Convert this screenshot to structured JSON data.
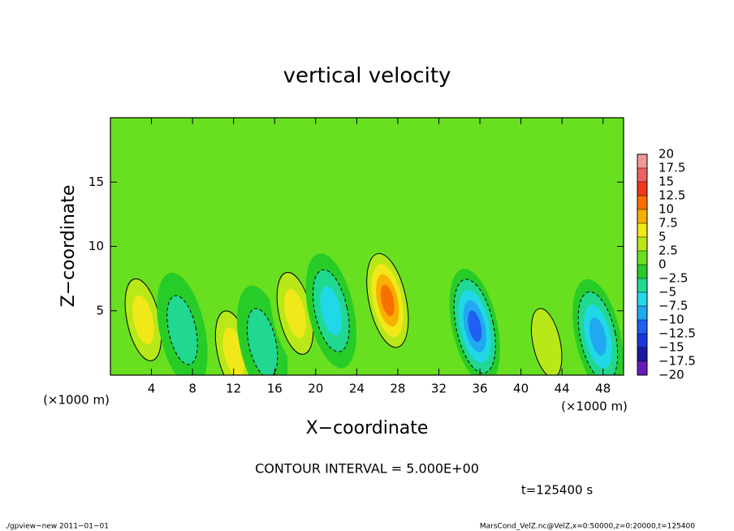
{
  "chart_data": {
    "type": "contour",
    "title": "vertical velocity",
    "xlabel": "X−coordinate",
    "ylabel": "Z−coordinate",
    "x_unit": "(×1000 m)",
    "contour_note": "CONTOUR INTERVAL = 5.000E+00",
    "time_label": "t=125400 s",
    "footer_left": "./gpview−new  2011−01−01",
    "footer_right": "MarsCond_VelZ.nc@VelZ,x=0:50000,z=0:20000,t=125400",
    "xlim": [
      0,
      50
    ],
    "ylim": [
      0,
      20
    ],
    "xticks": [
      4,
      8,
      12,
      16,
      20,
      24,
      28,
      32,
      36,
      40,
      44,
      48
    ],
    "yticks": [
      5,
      10,
      15
    ],
    "levels": [
      {
        "value": -20,
        "label": "−20"
      },
      {
        "value": -17.5,
        "label": "−17.5"
      },
      {
        "value": -15,
        "label": "−15"
      },
      {
        "value": -12.5,
        "label": "−12.5"
      },
      {
        "value": -10,
        "label": "−10"
      },
      {
        "value": -7.5,
        "label": "−7.5"
      },
      {
        "value": -5,
        "label": "−5"
      },
      {
        "value": -2.5,
        "label": "−2.5"
      },
      0,
      2.5,
      5,
      7.5,
      10,
      12.5,
      15,
      17.5,
      20
    ],
    "colors": [
      "#6a1ab8",
      "#1a1aa0",
      "#1a36d8",
      "#2060f0",
      "#20a8f0",
      "#20d8e8",
      "#20d890",
      "#28cc28",
      "#68e020",
      "#b8e818",
      "#f0e818",
      "#f8b000",
      "#f87000",
      "#f03818",
      "#f06060",
      "#f09898"
    ],
    "features": [
      {
        "x": 3.2,
        "z": 4.3,
        "value": 7.5
      },
      {
        "x": 7,
        "z": 3.5,
        "value": -5
      },
      {
        "x": 12,
        "z": 1.8,
        "value": 7
      },
      {
        "x": 14.8,
        "z": 2.5,
        "value": -4
      },
      {
        "x": 18,
        "z": 4.8,
        "value": 7.5
      },
      {
        "x": 21.5,
        "z": 5,
        "value": -7.5
      },
      {
        "x": 27,
        "z": 5.8,
        "value": 12
      },
      {
        "x": 35.5,
        "z": 3.8,
        "value": -11
      },
      {
        "x": 42.5,
        "z": 2.5,
        "value": 5
      },
      {
        "x": 47.5,
        "z": 3,
        "value": -9
      }
    ]
  }
}
